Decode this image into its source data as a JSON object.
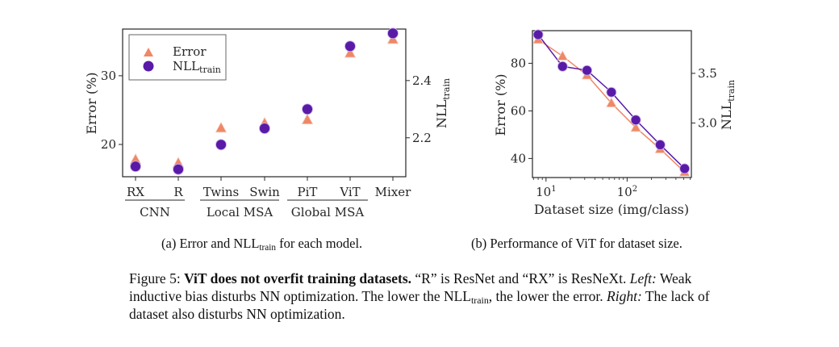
{
  "chart_data": [
    {
      "type": "scatter",
      "panel": "a",
      "categories": [
        "RX",
        "R",
        "Twins",
        "Swin",
        "PiT",
        "ViT",
        "Mixer"
      ],
      "groups": [
        {
          "label": "CNN",
          "members": [
            "RX",
            "R"
          ]
        },
        {
          "label": "Local MSA",
          "members": [
            "Twins",
            "Swin"
          ]
        },
        {
          "label": "Global MSA",
          "members": [
            "PiT",
            "ViT"
          ]
        }
      ],
      "series": [
        {
          "name": "Error",
          "axis": "left",
          "marker": "triangle",
          "color": "#ee8866",
          "values": [
            17.8,
            17.3,
            22.4,
            23.1,
            23.6,
            33.3,
            35.3
          ]
        },
        {
          "name": "NLL",
          "name_sub": "train",
          "axis": "right",
          "marker": "circle",
          "color": "#5a1aa8",
          "values": [
            2.1,
            2.09,
            2.176,
            2.233,
            2.3,
            2.52,
            2.565
          ]
        }
      ],
      "ylabel": "Error (%)",
      "y2label": "NLL",
      "y2label_sub": "train",
      "ylim": [
        15.3,
        36.8
      ],
      "yticks": [
        20,
        30
      ],
      "y2lim": [
        2.064,
        2.58
      ],
      "y2ticks": [
        2.2,
        2.4
      ],
      "y2tick_labels": [
        "2.2",
        "2.4"
      ],
      "legend": {
        "placement": "top-left",
        "entries": [
          {
            "label": "Error"
          },
          {
            "label": "NLL",
            "sub": "train"
          }
        ]
      },
      "grid": false
    },
    {
      "type": "line",
      "panel": "b",
      "x": [
        8,
        16,
        32,
        64,
        128,
        256,
        512
      ],
      "xscale": "log",
      "xlim": [
        6.8,
        620
      ],
      "xticks": [
        10,
        100
      ],
      "xtick_labels": [
        {
          "base": "10",
          "exp": "1"
        },
        {
          "base": "10",
          "exp": "2"
        }
      ],
      "series": [
        {
          "name": "Error",
          "axis": "left",
          "marker": "triangle",
          "color": "#ee8866",
          "values": [
            90,
            83,
            75,
            63.3,
            53,
            44,
            34.3
          ]
        },
        {
          "name": "NLL",
          "name_sub": "train",
          "axis": "right",
          "marker": "circle",
          "color": "#5a1aa8",
          "values": [
            3.89,
            3.57,
            3.53,
            3.31,
            3.03,
            2.78,
            2.54
          ]
        }
      ],
      "xlabel": "Dataset size (img/class)",
      "ylabel": "Error (%)",
      "y2label": "NLL",
      "y2label_sub": "train",
      "ylim": [
        32,
        93.7
      ],
      "yticks": [
        40,
        60,
        80
      ],
      "y2lim": [
        2.45,
        3.93
      ],
      "y2ticks": [
        3.0,
        3.5
      ],
      "y2tick_labels": [
        "3.0",
        "3.5"
      ],
      "grid": false
    }
  ],
  "captions": {
    "a_prefix": "(a) Error and NLL",
    "a_sub": "train",
    "a_suffix": " for each model.",
    "b": "(b) Performance of ViT for dataset size."
  },
  "figure_caption": {
    "label": "Figure 5: ",
    "bold": "ViT does not overfit training datasets.",
    "text1": " “R” is ResNet and “RX” is ResNeXt. ",
    "left_label": "Left:",
    "text2": " Weak inductive bias disturbs NN optimization. The lower the NLL",
    "sub": "train",
    "text3": ", the lower the error. ",
    "right_label": "Right:",
    "text4": " The lack of dataset also disturbs NN optimization."
  }
}
